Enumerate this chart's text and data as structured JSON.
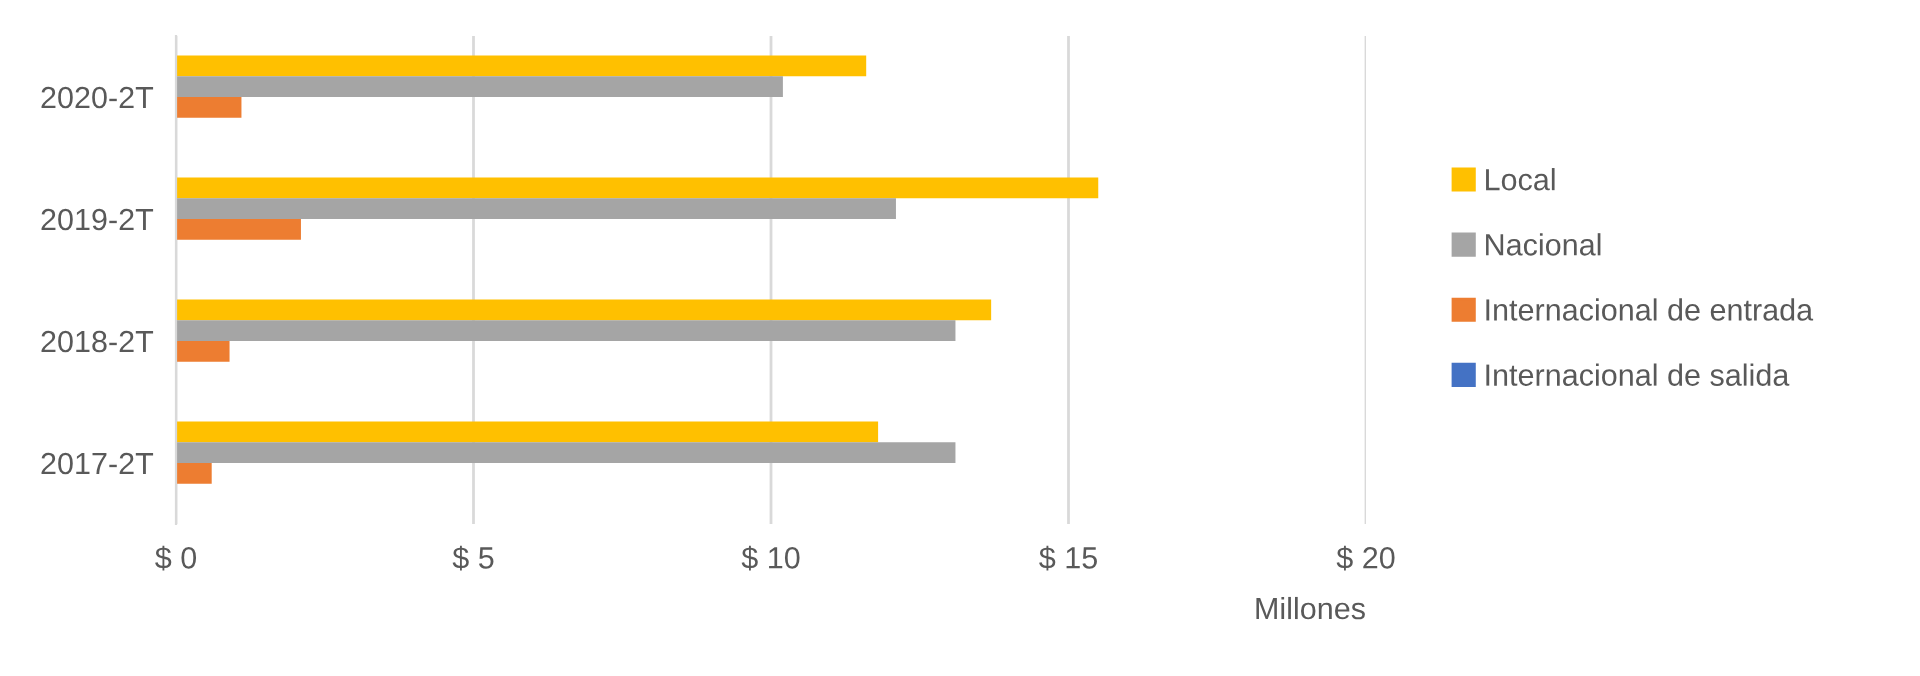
{
  "chart_data": {
    "type": "bar",
    "orientation": "horizontal",
    "xlabel": "Millones",
    "categories": [
      "2020-2T",
      "2019-2T",
      "2018-2T",
      "2017-2T"
    ],
    "series": [
      {
        "name": "Local",
        "color": "#ffc000",
        "values": [
          11.6,
          15.5,
          13.7,
          11.8
        ]
      },
      {
        "name": "Nacional",
        "color": "#a5a5a5",
        "values": [
          10.2,
          12.1,
          13.1,
          13.1
        ]
      },
      {
        "name": "Internacional de entrada",
        "color": "#ed7d31",
        "values": [
          1.1,
          2.1,
          0.9,
          0.6
        ]
      },
      {
        "name": "Internacional de salida",
        "color": "#4472c4",
        "values": [
          0,
          0,
          0,
          0
        ]
      }
    ],
    "xlim": [
      0,
      20
    ],
    "xticks": [
      {
        "value": 0,
        "label": "$ 0"
      },
      {
        "value": 5,
        "label": "$ 5"
      },
      {
        "value": 10,
        "label": "$ 10"
      },
      {
        "value": 15,
        "label": "$ 15"
      },
      {
        "value": 20,
        "label": "$ 20"
      }
    ],
    "grid": "x",
    "legend": "right"
  }
}
